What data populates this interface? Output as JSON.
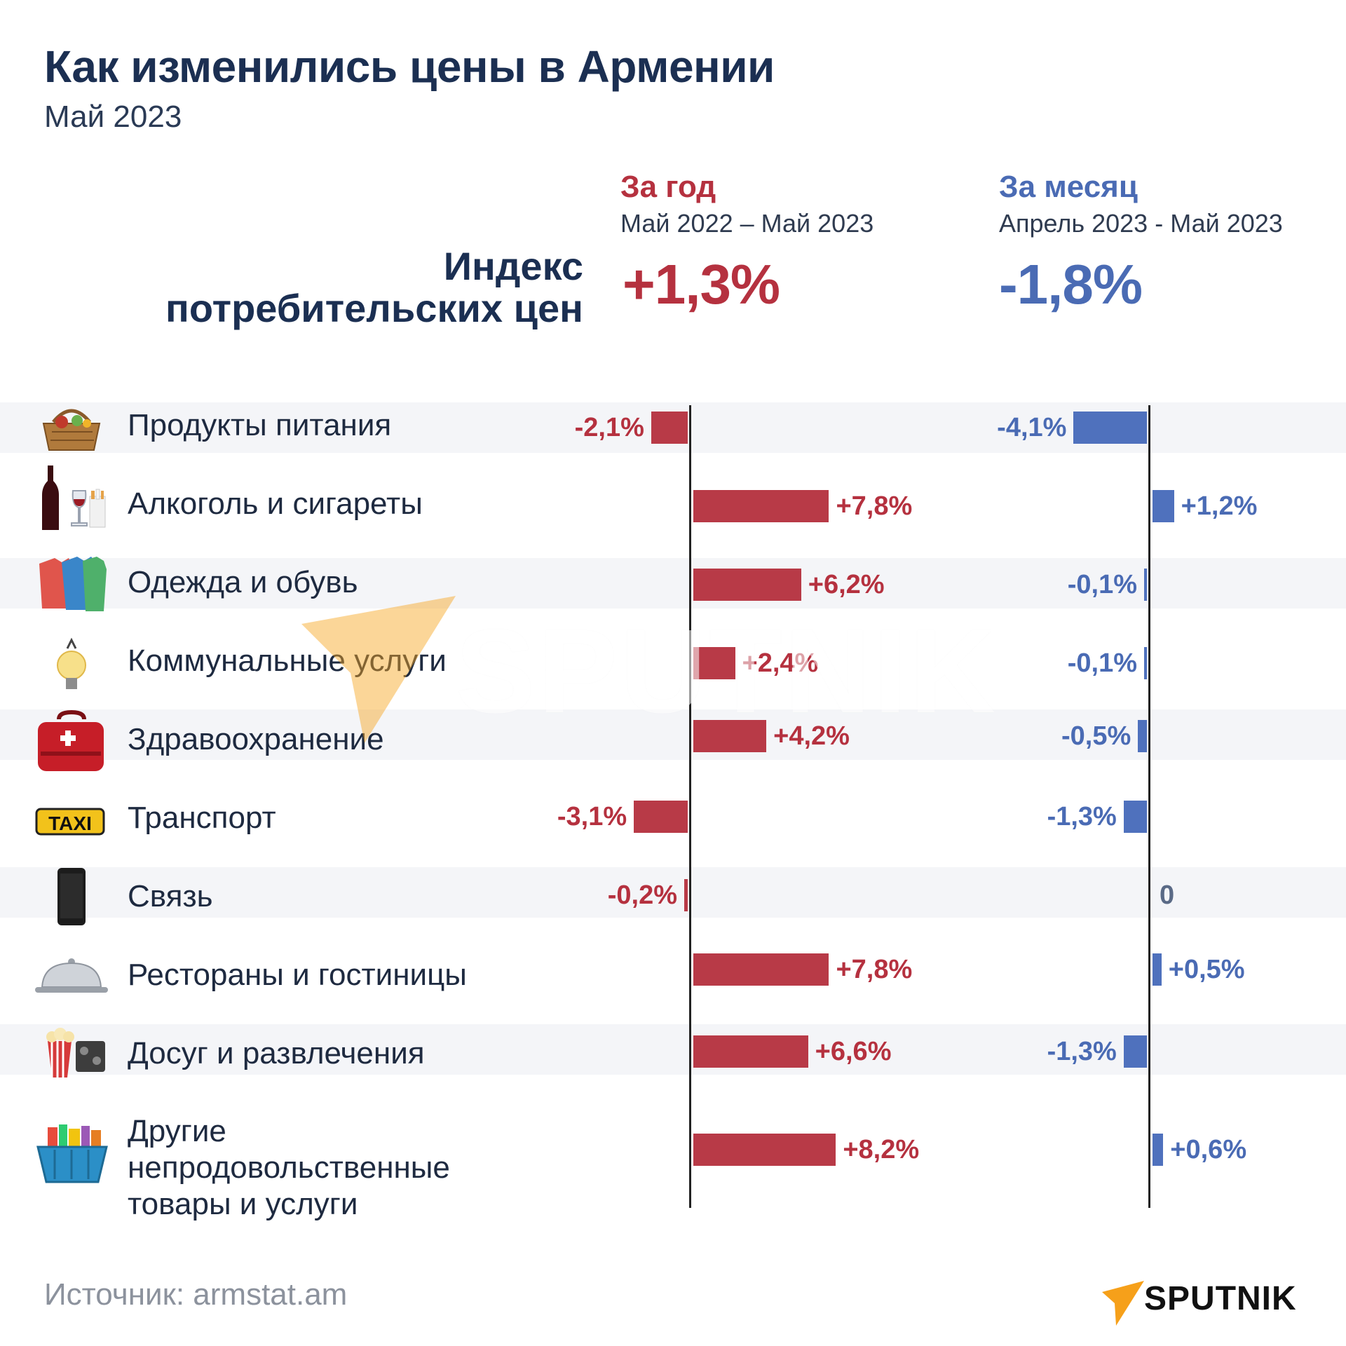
{
  "header": {
    "title": "Как изменились цены в Армении",
    "subtitle": "Май 2023"
  },
  "columns": {
    "year": {
      "title": "За год",
      "period": "Май 2022 – Май 2023",
      "total": "+1,3%"
    },
    "month": {
      "title": "За месяц",
      "period": "Апрель 2023 - Май 2023",
      "total": "-1,8%"
    }
  },
  "index_label": [
    "Индекс",
    "потребительских цен"
  ],
  "colors": {
    "year": "#b83a47",
    "month": "#4f71bd",
    "title": "#1b2f52"
  },
  "chart_data": {
    "type": "bar",
    "orientation": "horizontal",
    "categories": [
      "Продукты питания",
      "Алкоголь и сигареты",
      "Одежда и обувь",
      "Коммунальные услуги",
      "Здравоохранение",
      "Транспорт",
      "Связь",
      "Рестораны и гостиницы",
      "Досуг и развлечения",
      "Другие непродовольственные товары и услуги"
    ],
    "series": [
      {
        "name": "За год",
        "values": [
          -2.1,
          7.8,
          6.2,
          2.4,
          4.2,
          -3.1,
          -0.2,
          7.8,
          6.6,
          8.2
        ],
        "labels": [
          "-2,1%",
          "+7,8%",
          "+6,2%",
          "+2,4%",
          "+4,2%",
          "-3,1%",
          "-0,2%",
          "+7,8%",
          "+6,6%",
          "+8,2%"
        ]
      },
      {
        "name": "За месяц",
        "values": [
          -4.1,
          1.2,
          -0.1,
          -0.1,
          -0.5,
          -1.3,
          0,
          0.5,
          -1.3,
          0.6
        ],
        "labels": [
          "-4,1%",
          "+1,2%",
          "-0,1%",
          "-0,1%",
          "-0,5%",
          "-1,3%",
          "0",
          "+0,5%",
          "-1,3%",
          "+0,6%"
        ]
      }
    ]
  },
  "icons": [
    "food-basket-icon",
    "wine-cigarettes-icon",
    "shirts-icon",
    "light-bulb-icon",
    "first-aid-bag-icon",
    "taxi-sign-icon",
    "mobile-phone-icon",
    "cloche-icon",
    "popcorn-film-icon",
    "shopping-basket-icon"
  ],
  "footer": {
    "source": "Источник: armstat.am",
    "brand": "SPUTNIK"
  },
  "watermark": "SPUTNIK"
}
